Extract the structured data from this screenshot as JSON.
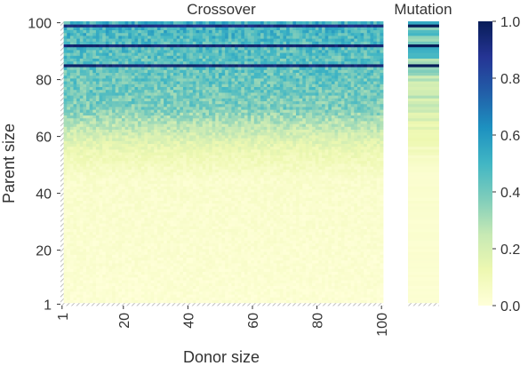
{
  "chart_data": [
    {
      "type": "heatmap",
      "title": "Crossover",
      "xlabel": "Donor size",
      "ylabel": "Parent size",
      "x_range": [
        1,
        100
      ],
      "y_range": [
        1,
        100
      ],
      "x_ticks": [
        "1",
        "20",
        "40",
        "60",
        "80",
        "100"
      ],
      "y_ticks": [
        "1",
        "20",
        "40",
        "60",
        "80",
        "100"
      ],
      "value_range": [
        0.0,
        1.0
      ],
      "colormap": "YlGnBu",
      "value_by_parent_size": [
        {
          "parent_size": 1,
          "value": 0.02
        },
        {
          "parent_size": 45,
          "value": 0.04
        },
        {
          "parent_size": 55,
          "value": 0.12
        },
        {
          "parent_size": 60,
          "value": 0.2
        },
        {
          "parent_size": 65,
          "value": 0.28
        },
        {
          "parent_size": 70,
          "value": 0.38
        },
        {
          "parent_size": 80,
          "value": 0.42
        },
        {
          "parent_size": 90,
          "value": 0.45
        },
        {
          "parent_size": 100,
          "value": 0.5
        }
      ],
      "high_value_rows": [
        {
          "parent_size": 85,
          "value": 0.95
        },
        {
          "parent_size": 92,
          "value": 0.95
        },
        {
          "parent_size": 99,
          "value": 0.92
        }
      ],
      "note_hatched": "row parent size 1 and column donor size 1 are hatched"
    },
    {
      "type": "heatmap",
      "title": "Mutation",
      "y_range": [
        1,
        100
      ],
      "value_range": [
        0.0,
        1.0
      ],
      "colormap": "YlGnBu",
      "value_by_parent_size": [
        {
          "parent_size": 1,
          "value": 0.02
        },
        {
          "parent_size": 50,
          "value": 0.04
        },
        {
          "parent_size": 60,
          "value": 0.12
        },
        {
          "parent_size": 70,
          "value": 0.2
        },
        {
          "parent_size": 80,
          "value": 0.3
        },
        {
          "parent_size": 90,
          "value": 0.4
        },
        {
          "parent_size": 100,
          "value": 0.5
        }
      ],
      "high_value_rows": [
        {
          "parent_size": 85,
          "value": 0.85
        },
        {
          "parent_size": 92,
          "value": 0.9
        },
        {
          "parent_size": 99,
          "value": 0.95
        }
      ]
    }
  ],
  "colorbar": {
    "ticks": [
      "0.0",
      "0.2",
      "0.4",
      "0.6",
      "0.8",
      "1.0"
    ],
    "colors": [
      "#ffffd9",
      "#edf8b1",
      "#c7e9b4",
      "#7fcdbb",
      "#41b6c4",
      "#1d91c0",
      "#225ea8",
      "#253494",
      "#081d58"
    ]
  }
}
